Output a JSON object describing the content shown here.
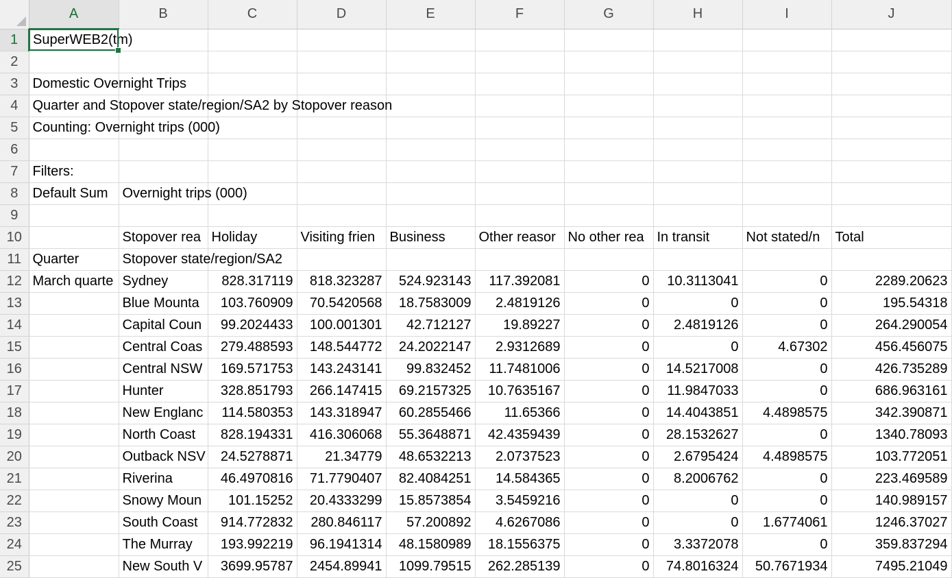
{
  "columns": [
    "A",
    "B",
    "C",
    "D",
    "E",
    "F",
    "G",
    "H",
    "I",
    "J"
  ],
  "active_cell": "A1",
  "rows": [
    {
      "n": "1",
      "cells": [
        "SuperWEB2(tm)",
        "",
        "",
        "",
        "",
        "",
        "",
        "",
        "",
        ""
      ]
    },
    {
      "n": "2",
      "cells": [
        "",
        "",
        "",
        "",
        "",
        "",
        "",
        "",
        "",
        ""
      ]
    },
    {
      "n": "3",
      "cells": [
        "Domestic Overnight Trips",
        "",
        "",
        "",
        "",
        "",
        "",
        "",
        "",
        ""
      ]
    },
    {
      "n": "4",
      "cells": [
        "Quarter and Stopover state/region/SA2 by Stopover reason",
        "",
        "",
        "",
        "",
        "",
        "",
        "",
        "",
        ""
      ]
    },
    {
      "n": "5",
      "cells": [
        "Counting: Overnight trips (000)",
        "",
        "",
        "",
        "",
        "",
        "",
        "",
        "",
        ""
      ]
    },
    {
      "n": "6",
      "cells": [
        "",
        "",
        "",
        "",
        "",
        "",
        "",
        "",
        "",
        ""
      ]
    },
    {
      "n": "7",
      "cells": [
        "Filters:",
        "",
        "",
        "",
        "",
        "",
        "",
        "",
        "",
        ""
      ]
    },
    {
      "n": "8",
      "cells": [
        "Default Sum",
        "Overnight trips (000)",
        "",
        "",
        "",
        "",
        "",
        "",
        "",
        ""
      ]
    },
    {
      "n": "9",
      "cells": [
        "",
        "",
        "",
        "",
        "",
        "",
        "",
        "",
        "",
        ""
      ]
    },
    {
      "n": "10",
      "cells": [
        "",
        "Stopover rea",
        "Holiday",
        "Visiting frien",
        "Business",
        "Other reasor",
        "No other rea",
        "In transit",
        "Not stated/n",
        "Total"
      ]
    },
    {
      "n": "11",
      "cells": [
        "Quarter",
        "Stopover state/region/SA2",
        "",
        "",
        "",
        "",
        "",
        "",
        "",
        ""
      ]
    },
    {
      "n": "12",
      "cells": [
        "March quarte",
        "Sydney",
        "828.317119",
        "818.323287",
        "524.923143",
        "117.392081",
        "0",
        "10.3113041",
        "0",
        "2289.20623"
      ]
    },
    {
      "n": "13",
      "cells": [
        "",
        "Blue Mounta",
        "103.760909",
        "70.5420568",
        "18.7583009",
        "2.4819126",
        "0",
        "0",
        "0",
        "195.54318"
      ]
    },
    {
      "n": "14",
      "cells": [
        "",
        "Capital Coun",
        "99.2024433",
        "100.001301",
        "42.712127",
        "19.89227",
        "0",
        "2.4819126",
        "0",
        "264.290054"
      ]
    },
    {
      "n": "15",
      "cells": [
        "",
        "Central Coas",
        "279.488593",
        "148.544772",
        "24.2022147",
        "2.9312689",
        "0",
        "0",
        "4.67302",
        "456.456075"
      ]
    },
    {
      "n": "16",
      "cells": [
        "",
        "Central NSW",
        "169.571753",
        "143.243141",
        "99.832452",
        "11.7481006",
        "0",
        "14.5217008",
        "0",
        "426.735289"
      ]
    },
    {
      "n": "17",
      "cells": [
        "",
        "Hunter",
        "328.851793",
        "266.147415",
        "69.2157325",
        "10.7635167",
        "0",
        "11.9847033",
        "0",
        "686.963161"
      ]
    },
    {
      "n": "18",
      "cells": [
        "",
        "New Englanc",
        "114.580353",
        "143.318947",
        "60.2855466",
        "11.65366",
        "0",
        "14.4043851",
        "4.4898575",
        "342.390871"
      ]
    },
    {
      "n": "19",
      "cells": [
        "",
        "North Coast",
        "828.194331",
        "416.306068",
        "55.3648871",
        "42.4359439",
        "0",
        "28.1532627",
        "0",
        "1340.78093"
      ]
    },
    {
      "n": "20",
      "cells": [
        "",
        "Outback NSV",
        "24.5278871",
        "21.34779",
        "48.6532213",
        "2.0737523",
        "0",
        "2.6795424",
        "4.4898575",
        "103.772051"
      ]
    },
    {
      "n": "21",
      "cells": [
        "",
        "Riverina",
        "46.4970816",
        "71.7790407",
        "82.4084251",
        "14.584365",
        "0",
        "8.2006762",
        "0",
        "223.469589"
      ]
    },
    {
      "n": "22",
      "cells": [
        "",
        "Snowy Moun",
        "101.15252",
        "20.4333299",
        "15.8573854",
        "3.5459216",
        "0",
        "0",
        "0",
        "140.989157"
      ]
    },
    {
      "n": "23",
      "cells": [
        "",
        "South Coast",
        "914.772832",
        "280.846117",
        "57.200892",
        "4.6267086",
        "0",
        "0",
        "1.6774061",
        "1246.37027"
      ]
    },
    {
      "n": "24",
      "cells": [
        "",
        "The Murray",
        "193.992219",
        "96.1941314",
        "48.1580989",
        "18.1556375",
        "0",
        "3.3372078",
        "0",
        "359.837294"
      ]
    },
    {
      "n": "25",
      "cells": [
        "",
        "New South V",
        "3699.95787",
        "2454.89941",
        "1099.79515",
        "262.285139",
        "0",
        "74.8016324",
        "50.7671934",
        "7495.21049"
      ]
    }
  ]
}
